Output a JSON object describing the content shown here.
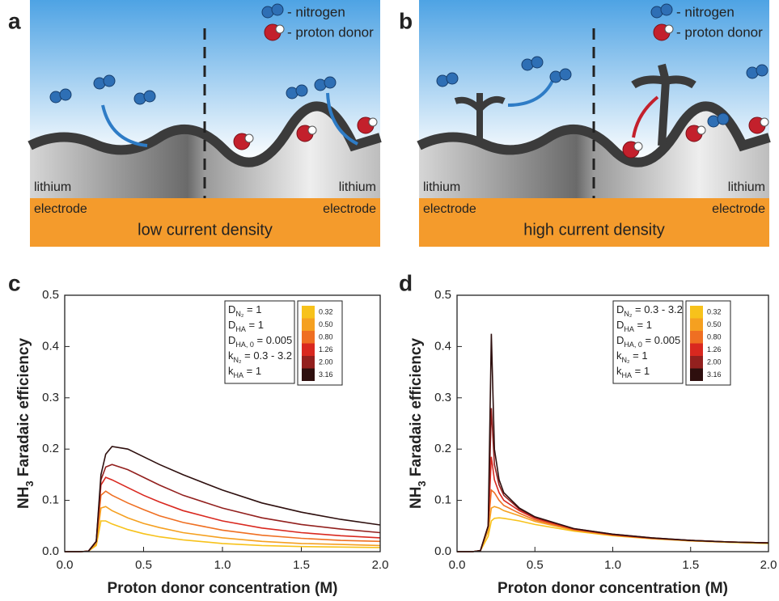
{
  "panel_labels": [
    "a",
    "b",
    "c",
    "d"
  ],
  "schematics": [
    {
      "nitrogen": "- nitrogen",
      "proton_donor": "- proton donor",
      "lithium_left": "lithium",
      "lithium_right": "lithium",
      "electrode_left": "electrode",
      "electrode_right": "electrode",
      "caption": "low current density"
    },
    {
      "nitrogen": "- nitrogen",
      "proton_donor": "- proton donor",
      "lithium_left": "lithium",
      "lithium_right": "lithium",
      "electrode_left": "electrode",
      "electrode_right": "electrode",
      "caption": "high current density"
    }
  ],
  "chart_data": [
    {
      "type": "line",
      "x_label": "Proton donor concentration (M)",
      "y_label": {
        "pre": "NH",
        "sub": "3",
        "post": " Faradaic efficiency"
      },
      "xlim": [
        0,
        2
      ],
      "ylim": [
        0,
        0.5
      ],
      "xticks": [
        {
          "value": 0,
          "label": "0.0"
        },
        0.5,
        {
          "value": 1,
          "label": "1.0"
        },
        1.5,
        {
          "value": 2,
          "label": "2.0"
        }
      ],
      "yticks": [
        {
          "value": 0,
          "label": "0.0"
        },
        0.1,
        0.2,
        0.3,
        0.4,
        0.5
      ],
      "annotations": [
        [
          {
            "text": "D"
          },
          {
            "sub": "N₂"
          },
          {
            "text": " = 1"
          }
        ],
        [
          {
            "text": "D"
          },
          {
            "sub": "HA"
          },
          {
            "text": " = 1"
          }
        ],
        [
          {
            "text": "D"
          },
          {
            "sub": "HA, 0"
          },
          {
            "text": " = 0.005"
          }
        ],
        [
          {
            "text": "k"
          },
          {
            "sub": "N₂"
          },
          {
            "text": " = 0.3 - 3.2"
          }
        ],
        [
          {
            "text": "k"
          },
          {
            "sub": "HA"
          },
          {
            "text": " = 1"
          }
        ]
      ],
      "x": [
        0,
        0.1,
        0.15,
        0.2,
        0.23,
        0.26,
        0.3,
        0.4,
        0.5,
        0.6,
        0.75,
        1.0,
        1.25,
        1.5,
        1.75,
        2.0
      ],
      "series": [
        {
          "name": "0.32",
          "color": "#f7c21b",
          "values": [
            0,
            0,
            0.001,
            0.012,
            0.06,
            0.06,
            0.054,
            0.043,
            0.035,
            0.029,
            0.023,
            0.016,
            0.012,
            0.01,
            0.009,
            0.008
          ]
        },
        {
          "name": "0.50",
          "color": "#f5a020",
          "values": [
            0,
            0,
            0.001,
            0.015,
            0.085,
            0.088,
            0.08,
            0.066,
            0.055,
            0.047,
            0.037,
            0.027,
            0.02,
            0.016,
            0.014,
            0.012
          ]
        },
        {
          "name": "0.80",
          "color": "#ef6f22",
          "values": [
            0,
            0,
            0.001,
            0.02,
            0.11,
            0.118,
            0.11,
            0.095,
            0.082,
            0.07,
            0.057,
            0.042,
            0.032,
            0.026,
            0.022,
            0.02
          ]
        },
        {
          "name": "1.26",
          "color": "#d9281f",
          "values": [
            0,
            0,
            0.001,
            0.02,
            0.13,
            0.145,
            0.14,
            0.125,
            0.11,
            0.097,
            0.08,
            0.06,
            0.046,
            0.037,
            0.031,
            0.027
          ]
        },
        {
          "name": "2.00",
          "color": "#93201e",
          "values": [
            0,
            0,
            0.001,
            0.02,
            0.14,
            0.165,
            0.17,
            0.16,
            0.145,
            0.13,
            0.11,
            0.085,
            0.066,
            0.053,
            0.044,
            0.037
          ]
        },
        {
          "name": "3.16",
          "color": "#2e0f0e",
          "values": [
            0,
            0,
            0.001,
            0.02,
            0.15,
            0.19,
            0.205,
            0.2,
            0.185,
            0.17,
            0.15,
            0.12,
            0.095,
            0.077,
            0.063,
            0.052
          ]
        }
      ]
    },
    {
      "type": "line",
      "x_label": "Proton donor concentration (M)",
      "y_label": {
        "pre": "NH",
        "sub": "3",
        "post": " Faradaic efficiency"
      },
      "xlim": [
        0,
        2
      ],
      "ylim": [
        0,
        0.5
      ],
      "xticks": [
        {
          "value": 0,
          "label": "0.0"
        },
        0.5,
        {
          "value": 1,
          "label": "1.0"
        },
        1.5,
        {
          "value": 2,
          "label": "2.0"
        }
      ],
      "yticks": [
        {
          "value": 0,
          "label": "0.0"
        },
        0.1,
        0.2,
        0.3,
        0.4,
        0.5
      ],
      "annotations": [
        [
          {
            "text": "D"
          },
          {
            "sub": "N₂"
          },
          {
            "text": " = 0.3 - 3.2"
          }
        ],
        [
          {
            "text": "D"
          },
          {
            "sub": "HA"
          },
          {
            "text": " = 1"
          }
        ],
        [
          {
            "text": "D"
          },
          {
            "sub": "HA, 0"
          },
          {
            "text": " = 0.005"
          }
        ],
        [
          {
            "text": "k"
          },
          {
            "sub": "N₂"
          },
          {
            "text": " = 1"
          }
        ],
        [
          {
            "text": "k"
          },
          {
            "sub": "HA"
          },
          {
            "text": " = 1"
          }
        ]
      ],
      "x": [
        0,
        0.1,
        0.15,
        0.2,
        0.22,
        0.24,
        0.27,
        0.3,
        0.4,
        0.5,
        0.75,
        1.0,
        1.25,
        1.5,
        1.75,
        2.0
      ],
      "series": [
        {
          "name": "0.32",
          "color": "#f7c21b",
          "values": [
            0,
            0,
            0.002,
            0.03,
            0.06,
            0.065,
            0.066,
            0.065,
            0.06,
            0.053,
            0.04,
            0.031,
            0.025,
            0.021,
            0.018,
            0.016
          ]
        },
        {
          "name": "0.50",
          "color": "#f5a020",
          "values": [
            0,
            0,
            0.002,
            0.04,
            0.085,
            0.088,
            0.085,
            0.08,
            0.07,
            0.059,
            0.042,
            0.032,
            0.026,
            0.021,
            0.019,
            0.017
          ]
        },
        {
          "name": "0.80",
          "color": "#ef6f22",
          "values": [
            0,
            0,
            0.002,
            0.05,
            0.12,
            0.115,
            0.1,
            0.09,
            0.075,
            0.062,
            0.043,
            0.033,
            0.026,
            0.022,
            0.019,
            0.017
          ]
        },
        {
          "name": "1.26",
          "color": "#d9281f",
          "values": [
            0,
            0,
            0.002,
            0.05,
            0.185,
            0.14,
            0.115,
            0.1,
            0.08,
            0.065,
            0.044,
            0.033,
            0.026,
            0.022,
            0.019,
            0.017
          ]
        },
        {
          "name": "2.00",
          "color": "#93201e",
          "values": [
            0,
            0,
            0.002,
            0.05,
            0.28,
            0.17,
            0.13,
            0.11,
            0.083,
            0.067,
            0.045,
            0.034,
            0.027,
            0.022,
            0.019,
            0.017
          ]
        },
        {
          "name": "3.16",
          "color": "#2e0f0e",
          "values": [
            0,
            0,
            0.002,
            0.05,
            0.425,
            0.2,
            0.14,
            0.115,
            0.085,
            0.068,
            0.045,
            0.034,
            0.027,
            0.022,
            0.019,
            0.017
          ]
        }
      ]
    }
  ]
}
